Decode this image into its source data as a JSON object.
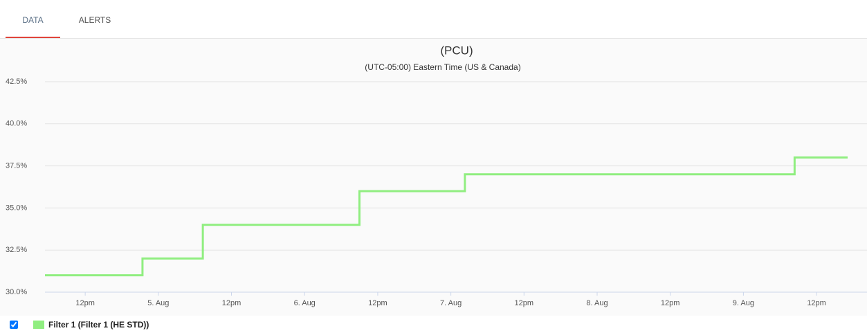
{
  "tabs": [
    {
      "label": "DATA",
      "active": true
    },
    {
      "label": "ALERTS",
      "active": false
    }
  ],
  "chart_data": {
    "type": "step-line",
    "title": "(PCU)",
    "subtitle": "(UTC-05:00) Eastern Time (US & Canada)",
    "x": [
      "08-04 05:24",
      "08-04 21:24",
      "08-05 07:18",
      "08-06 09:00",
      "08-07 02:18",
      "08-09 08:24",
      "08-09 17:06"
    ],
    "series": [
      {
        "name": "Filter 1 (Filter 1 (HE STD))",
        "color": "#90ee80",
        "values": [
          31,
          32,
          34,
          36,
          37,
          38,
          38
        ]
      }
    ],
    "xlim": [
      "08-04 05:24",
      "08-09 17:06"
    ],
    "xticks": [
      {
        "value": "08-04 12:00",
        "label": "12pm"
      },
      {
        "value": "08-05 00:00",
        "label": "5. Aug"
      },
      {
        "value": "08-05 12:00",
        "label": "12pm"
      },
      {
        "value": "08-06 00:00",
        "label": "6. Aug"
      },
      {
        "value": "08-06 12:00",
        "label": "12pm"
      },
      {
        "value": "08-07 00:00",
        "label": "7. Aug"
      },
      {
        "value": "08-07 12:00",
        "label": "12pm"
      },
      {
        "value": "08-08 00:00",
        "label": "8. Aug"
      },
      {
        "value": "08-08 12:00",
        "label": "12pm"
      },
      {
        "value": "08-09 00:00",
        "label": "9. Aug"
      },
      {
        "value": "08-09 12:00",
        "label": "12pm"
      }
    ],
    "ylim": [
      30,
      42.5
    ],
    "yticks": [
      {
        "value": 30,
        "label": "30.0%"
      },
      {
        "value": 32.5,
        "label": "32.5%"
      },
      {
        "value": 35,
        "label": "35.0%"
      },
      {
        "value": 37.5,
        "label": "37.5%"
      },
      {
        "value": 40,
        "label": "40.0%"
      },
      {
        "value": 42.5,
        "label": "42.5%"
      }
    ],
    "grid": true,
    "legend": "bottom-left"
  }
}
